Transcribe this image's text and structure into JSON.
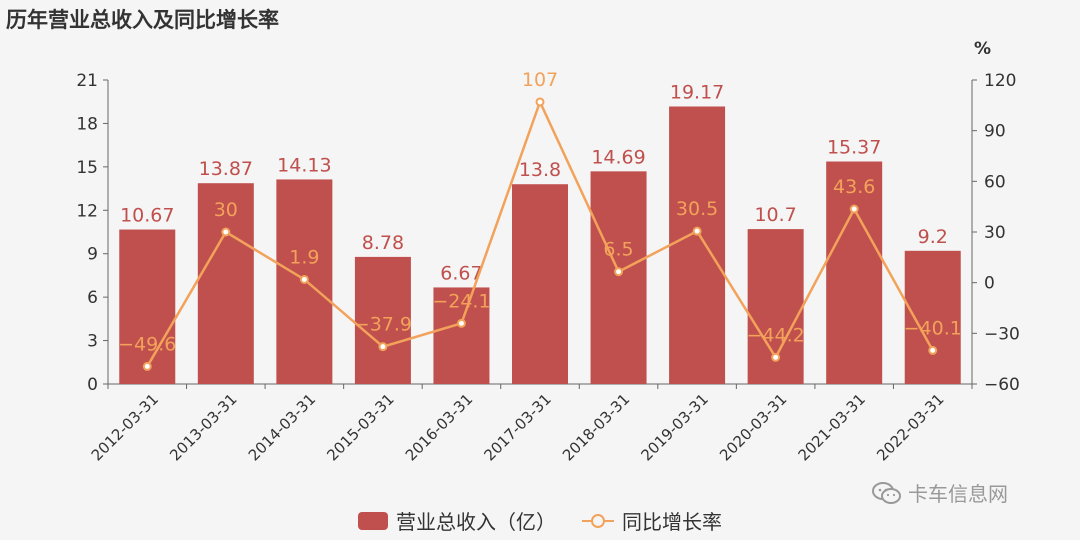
{
  "title": "历年营业总收入及同比增长率",
  "watermark": "卡车信息网",
  "colors": {
    "bar": "#c0504d",
    "line": "#f2a25a",
    "bar_label": "#c0504d",
    "line_label": "#f2a25a",
    "axis": "#666666",
    "text": "#333333"
  },
  "chart_data": {
    "type": "bar",
    "categories": [
      "2012-03-31",
      "2013-03-31",
      "2014-03-31",
      "2015-03-31",
      "2016-03-31",
      "2017-03-31",
      "2018-03-31",
      "2019-03-31",
      "2020-03-31",
      "2021-03-31",
      "2022-03-31"
    ],
    "series": [
      {
        "name": "营业总收入（亿）",
        "type": "bar",
        "axis": "left",
        "values": [
          10.67,
          13.87,
          14.13,
          8.78,
          6.67,
          13.8,
          14.69,
          19.17,
          10.7,
          15.37,
          9.2
        ],
        "labels": [
          "10.67",
          "13.87",
          "14.13",
          "8.78",
          "6.67",
          "13.8",
          "14.69",
          "19.17",
          "10.7",
          "15.37",
          "9.2"
        ]
      },
      {
        "name": "同比增长率",
        "type": "line",
        "axis": "right",
        "values": [
          -49.6,
          30,
          1.9,
          -37.9,
          -24.1,
          107,
          6.5,
          30.5,
          -44.2,
          43.6,
          -40.1
        ],
        "labels": [
          "−49.6",
          "30",
          "1.9",
          "−37.9",
          "−24.1",
          "107",
          "6.5",
          "30.5",
          "−44.2",
          "43.6",
          "−40.1"
        ]
      }
    ],
    "y_left": {
      "ylim": [
        0,
        21
      ],
      "ticks": [
        "0",
        "3",
        "6",
        "9",
        "12",
        "15",
        "18",
        "21"
      ]
    },
    "y_right": {
      "unit": "%",
      "ylim": [
        -60,
        120
      ],
      "ticks": [
        "−60",
        "−30",
        "0",
        "30",
        "60",
        "90",
        "120"
      ]
    },
    "legend_position": "bottom",
    "grid": false
  }
}
